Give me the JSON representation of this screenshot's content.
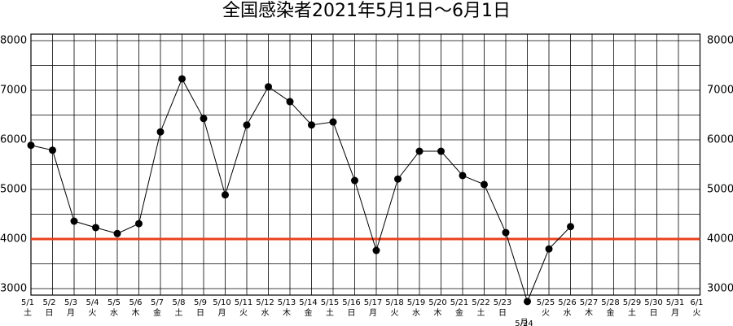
{
  "chart_data": {
    "type": "line",
    "title": "全国感染者2021年5月1日～6月1日",
    "categories": [
      "5/1",
      "5/2",
      "5/3",
      "5/4",
      "5/5",
      "5/6",
      "5/7",
      "5/8",
      "5/9",
      "5/10",
      "5/11",
      "5/12",
      "5/13",
      "5/14",
      "5/15",
      "5/16",
      "5/17",
      "5/18",
      "5/19",
      "5/20",
      "5/21",
      "5/22",
      "5/23",
      "5/24",
      "5/25",
      "5/26",
      "5/27",
      "5/28",
      "5/29",
      "5/30",
      "5/31",
      "6/1"
    ],
    "weekdays": [
      "土",
      "日",
      "月",
      "火",
      "水",
      "木",
      "金",
      "土",
      "日",
      "月",
      "火",
      "水",
      "木",
      "金",
      "土",
      "日",
      "月",
      "火",
      "水",
      "木",
      "金",
      "土",
      "日",
      "月",
      "火",
      "水",
      "木",
      "金",
      "土",
      "日",
      "月",
      "火"
    ],
    "series": [
      {
        "name": "全国感染者",
        "color": "#000000",
        "values": [
          5890,
          5790,
          4360,
          4230,
          4110,
          4310,
          6160,
          7230,
          6430,
          4890,
          6300,
          7070,
          6770,
          6300,
          6360,
          5180,
          3770,
          5210,
          5770,
          5770,
          5280,
          5100,
          4130,
          2740,
          3800,
          4250,
          null,
          null,
          null,
          null,
          null,
          null
        ]
      }
    ],
    "ylim": [
      3000,
      8000
    ],
    "yticks": [
      3000,
      4000,
      5000,
      6000,
      7000,
      8000
    ],
    "y2ticks": [
      3000,
      4000,
      5000,
      6000,
      7000,
      8000
    ],
    "ygrid": [
      3000,
      3500,
      4000,
      4500,
      5000,
      5500,
      6000,
      6500,
      7000,
      7500,
      8000
    ],
    "grid": true,
    "reference_line": {
      "value": 4000,
      "color": "#e8401c"
    }
  }
}
